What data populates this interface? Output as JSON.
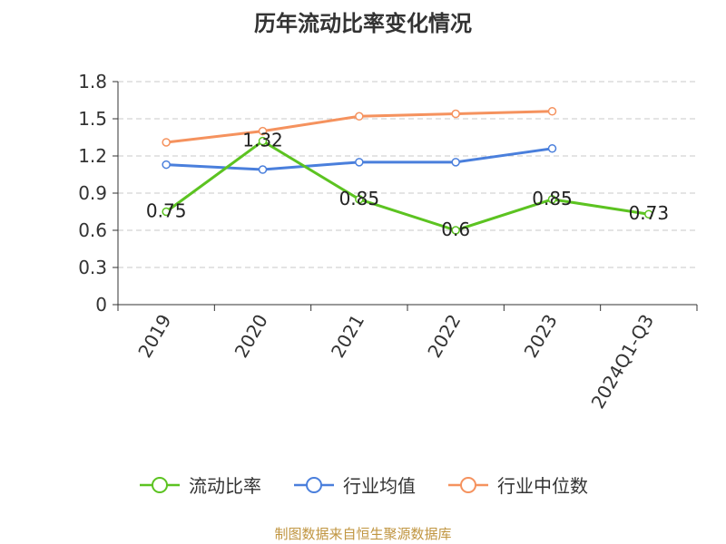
{
  "title": "历年流动比率变化情况",
  "source": "制图数据来自恒生聚源数据库",
  "chart_data": {
    "type": "line",
    "categories": [
      "2019",
      "2020",
      "2021",
      "2022",
      "2023",
      "2024Q1-Q3"
    ],
    "ylim": [
      0,
      1.8
    ],
    "yticks": [
      "0",
      "0.3",
      "0.6",
      "0.9",
      "1.2",
      "1.5",
      "1.8"
    ],
    "grid": true,
    "legend_position": "bottom",
    "series": [
      {
        "name": "流动比率",
        "color": "#5cc321",
        "values": [
          0.75,
          1.32,
          0.85,
          0.6,
          0.85,
          0.73
        ],
        "labels": [
          "0.75",
          "1.32",
          "0.85",
          "0.6",
          "0.85",
          "0.73"
        ]
      },
      {
        "name": "行业均值",
        "color": "#4a7fdc",
        "values": [
          1.13,
          1.09,
          1.15,
          1.15,
          1.26,
          null
        ],
        "labels": []
      },
      {
        "name": "行业中位数",
        "color": "#f5925e",
        "values": [
          1.31,
          1.4,
          1.52,
          1.54,
          1.56,
          null
        ],
        "labels": []
      }
    ]
  }
}
